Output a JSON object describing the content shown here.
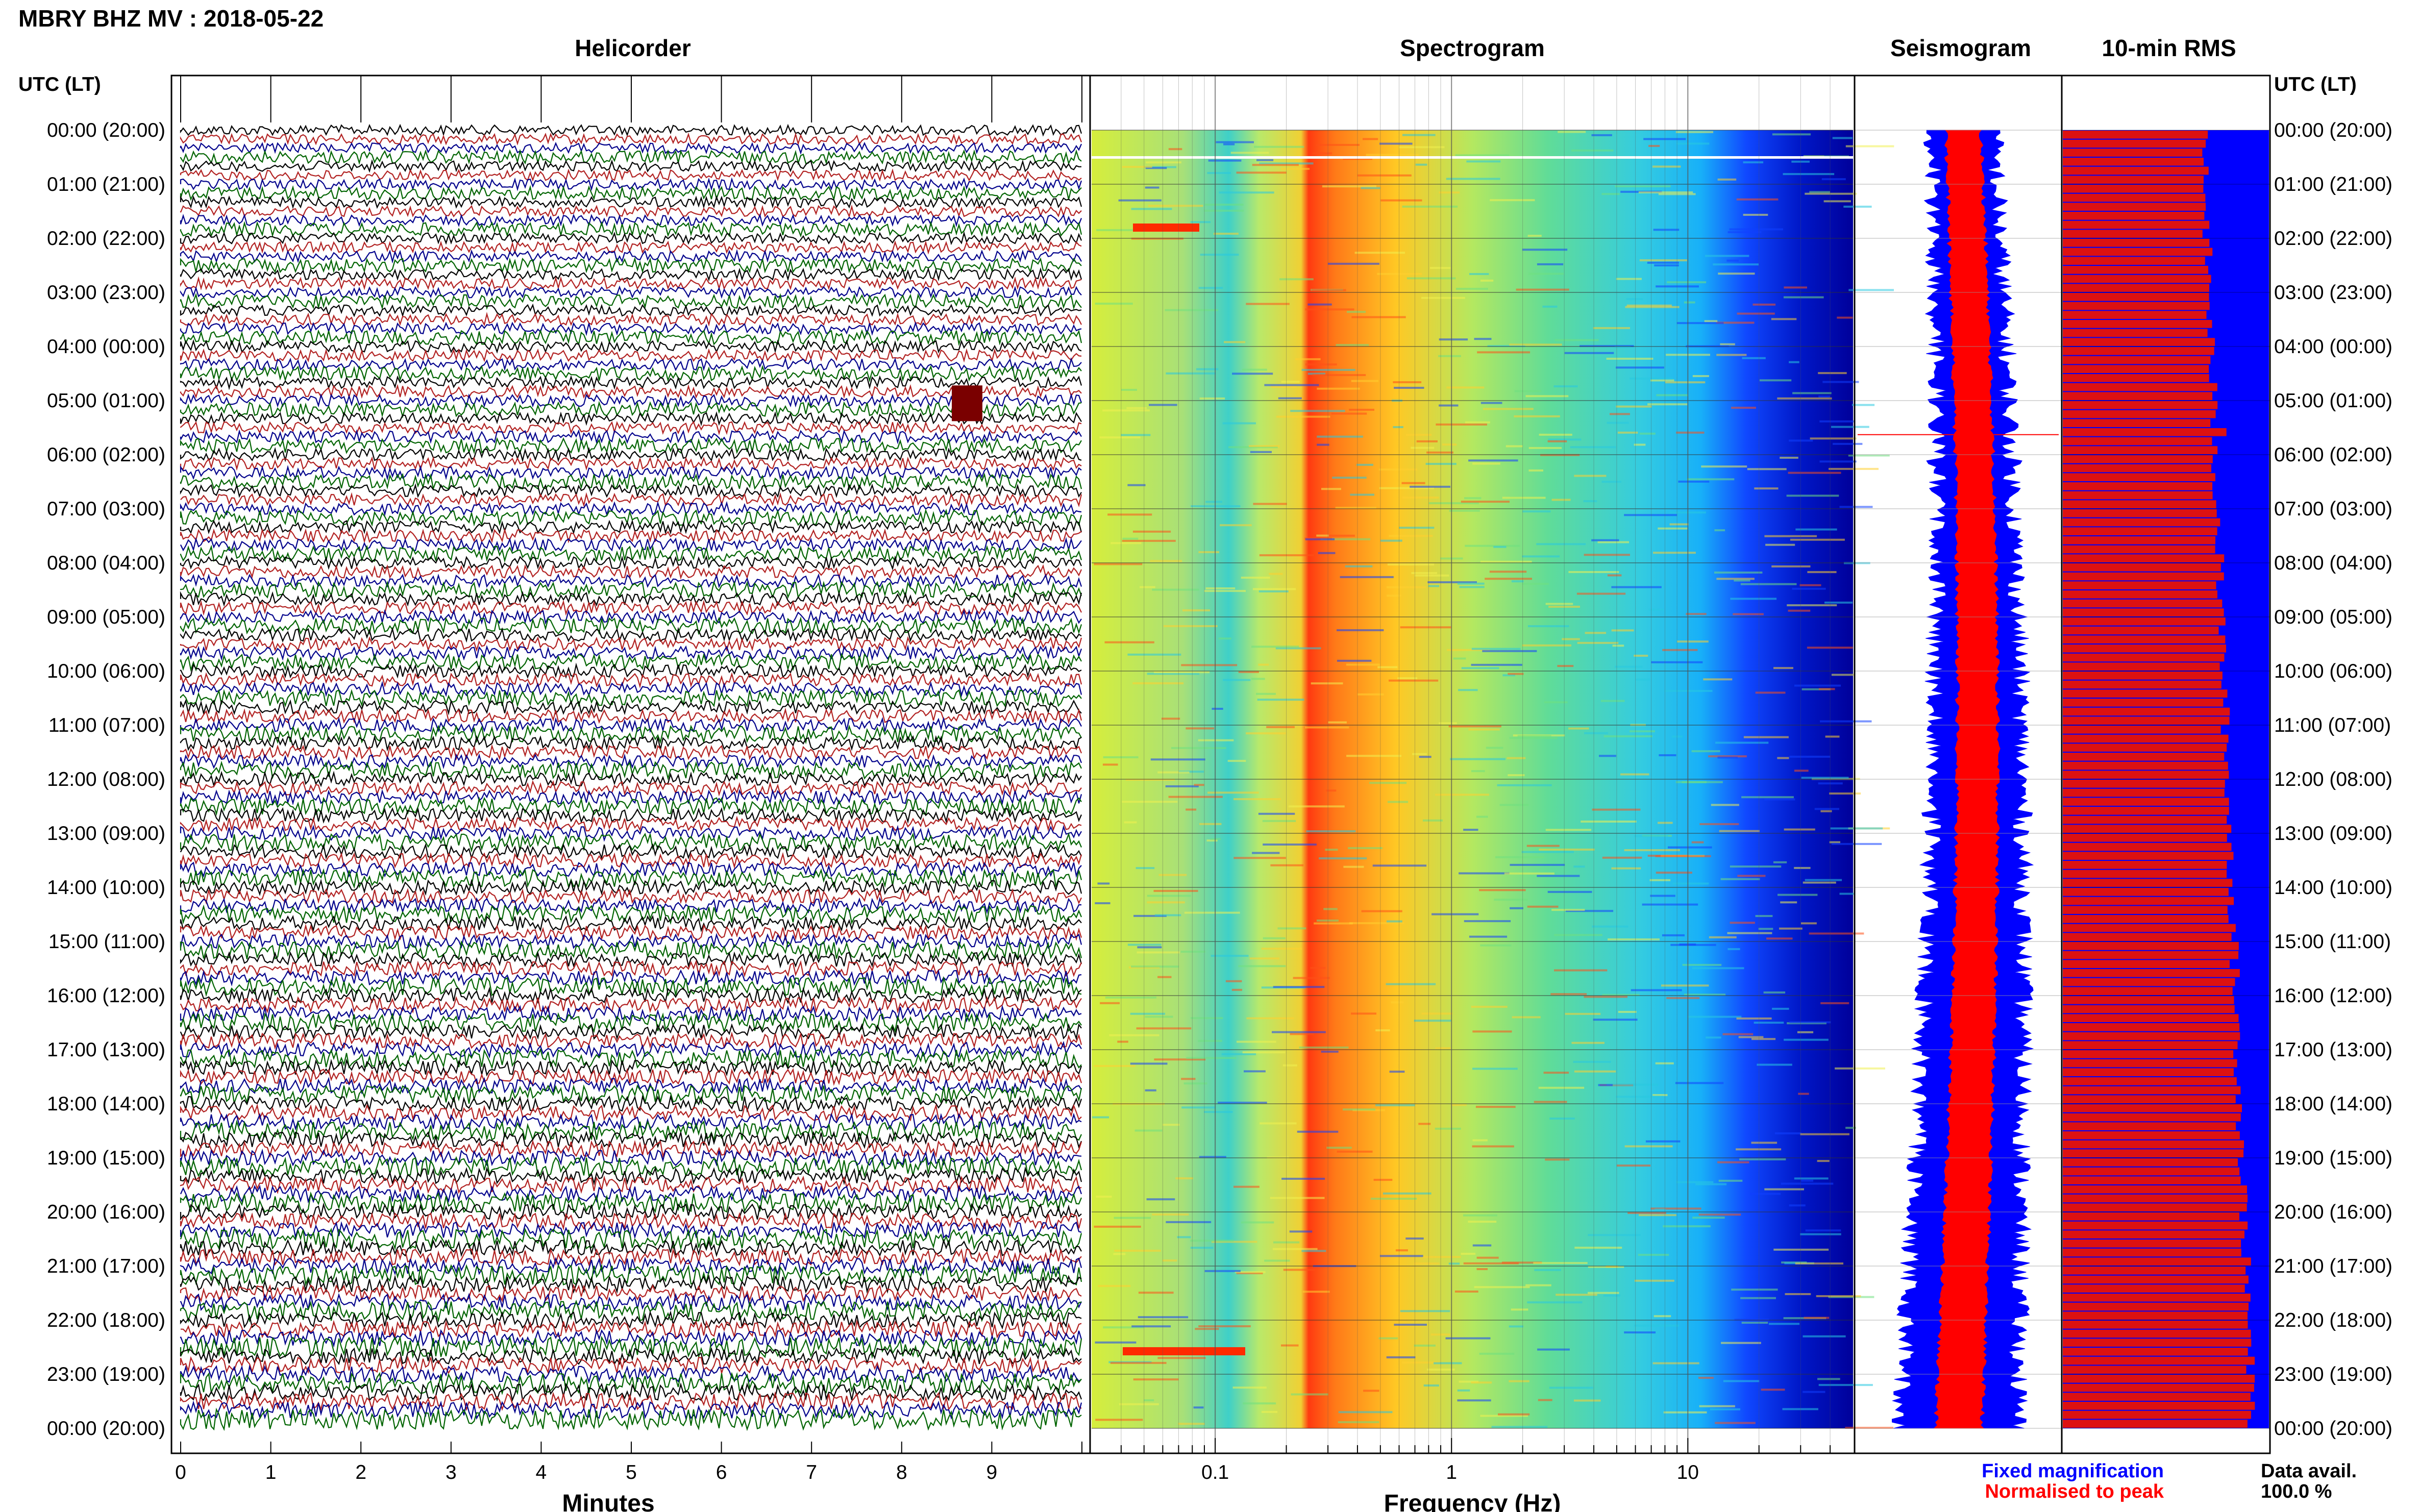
{
  "title": "MBRY BHZ MV : 2018-05-22",
  "time_axis_label": "UTC (LT)",
  "panels": {
    "helicorder": "Helicorder",
    "spectrogram": "Spectrogram",
    "seismogram": "Seismogram",
    "rms": "10-min RMS"
  },
  "time_ticks": [
    "00:00 (20:00)",
    "01:00 (21:00)",
    "02:00 (22:00)",
    "03:00 (23:00)",
    "04:00 (00:00)",
    "05:00 (01:00)",
    "06:00 (02:00)",
    "07:00 (03:00)",
    "08:00 (04:00)",
    "09:00 (05:00)",
    "10:00 (06:00)",
    "11:00 (07:00)",
    "12:00 (08:00)",
    "13:00 (09:00)",
    "14:00 (10:00)",
    "15:00 (11:00)",
    "16:00 (12:00)",
    "17:00 (13:00)",
    "18:00 (14:00)",
    "19:00 (15:00)",
    "20:00 (16:00)",
    "21:00 (17:00)",
    "22:00 (18:00)",
    "23:00 (19:00)",
    "00:00 (20:00)"
  ],
  "helicorder_xlabel": "Minutes",
  "helicorder_xticks": [
    "0",
    "1",
    "2",
    "3",
    "4",
    "5",
    "6",
    "7",
    "8",
    "9"
  ],
  "spectrogram_xlabel": "Frequency (Hz)",
  "spectrogram_xticks": [
    "0.1",
    "1",
    "10"
  ],
  "legend": {
    "fixed": "Fixed magnification",
    "normalised": "Normalised to peak",
    "data_avail_label": "Data avail.",
    "data_avail_value": "100.0 %"
  },
  "colors": {
    "trace_colors": [
      "#000000",
      "#b22222",
      "#00008b",
      "#006400"
    ],
    "fixed": "#0000ff",
    "normalised": "#ff0000",
    "rms_background": "#0000ff",
    "rms_bar": "#dd1111"
  },
  "chart_data": [
    {
      "type": "line",
      "name": "helicorder",
      "xlabel": "Minutes",
      "xlim": [
        0,
        10
      ],
      "rows": 144,
      "row_minutes": 10,
      "time_range_utc": [
        "00:00",
        "24:00"
      ]
    },
    {
      "type": "heatmap",
      "name": "spectrogram",
      "xlabel": "Frequency (Hz)",
      "x_scale": "log",
      "xlim": [
        0.03,
        50
      ],
      "dominant_band_hz": [
        0.2,
        1
      ],
      "colormap": "jet"
    },
    {
      "type": "area",
      "name": "seismogram",
      "series": [
        {
          "name": "Fixed magnification",
          "color": "#0000ff"
        },
        {
          "name": "Normalised to peak",
          "color": "#ff0000"
        }
      ]
    },
    {
      "type": "bar",
      "name": "rms",
      "bin_minutes": 10,
      "n_bars": 144,
      "relative_level_start": 0.68,
      "relative_level_end": 0.92
    }
  ]
}
